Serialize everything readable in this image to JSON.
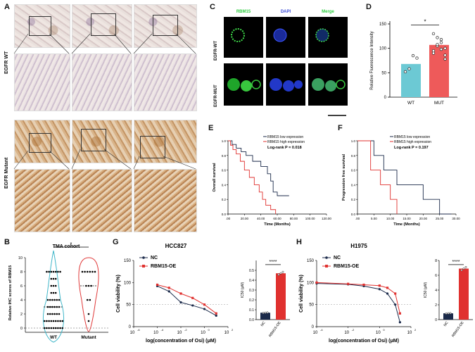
{
  "panels": {
    "A": "A",
    "B": "B",
    "C": "C",
    "D": "D",
    "E": "E",
    "F": "F",
    "G": "G",
    "H": "H"
  },
  "panelA": {
    "row_wt": "EGFR WT",
    "row_mut": "EGFR Mutant"
  },
  "panelB": {
    "title": "TMA cohort",
    "ylabel": "Relative IHC scores of RBM15",
    "categories": [
      "WT",
      "Mutant"
    ],
    "yticks": [
      "0",
      "2",
      "4",
      "6",
      "8",
      "10"
    ],
    "sig": "*",
    "colors": {
      "WT": "#3fb6c9",
      "Mutant": "#e03a3a"
    }
  },
  "panelC": {
    "cols": [
      "RBM15",
      "DAPI",
      "Merge"
    ],
    "rows": [
      "EGFR-WT",
      "EGFR-MUT"
    ],
    "col_colors": [
      "#2ecc40",
      "#3a4bd6",
      "#2ecc40"
    ]
  },
  "panelD": {
    "ylabel": "Relative Fluorescence Intensity",
    "categories": [
      "WT",
      "MUT"
    ],
    "yticks": [
      "0",
      "50",
      "100",
      "150"
    ],
    "sig": "*",
    "chart_data": {
      "type": "bar",
      "categories": [
        "WT",
        "MUT"
      ],
      "values": [
        68,
        107
      ],
      "ylim": [
        0,
        150
      ],
      "points": {
        "WT": [
          52,
          58,
          85,
          80
        ],
        "MUT": [
          130,
          122,
          112,
          100,
          95,
          105,
          118,
          86,
          90,
          108,
          98,
          78
        ]
      },
      "colors": [
        "#6cc9d4",
        "#ee5a5a"
      ]
    }
  },
  "panelE": {
    "ylabel": "Overall survival",
    "xlabel": "Time (Months)",
    "xticks": [
      ".00",
      "20.00",
      "40.00",
      "60.00",
      "80.00",
      "100.00",
      "120.00"
    ],
    "yticks": [
      "0.0",
      "0.2",
      "0.4",
      "0.6",
      "0.8",
      "1.0"
    ],
    "legend_low": "RBM15 low expression",
    "legend_high": "RBM15 high expression",
    "pvalue": "Log-rank P = 0.018"
  },
  "panelF": {
    "ylabel": "Progression free survival",
    "xlabel": "Time (Months)",
    "xticks": [
      ".00",
      "5.00",
      "10.00",
      "15.00",
      "20.00",
      "25.00",
      "30.00"
    ],
    "yticks": [
      "0.0",
      "0.2",
      "0.4",
      "0.6",
      "0.8",
      "1.0"
    ],
    "legend_low": "RBM15 low expression",
    "legend_high": "RBM15 high expression",
    "pvalue": "Log-rank P = 0.197"
  },
  "panelG": {
    "title": "HCC827",
    "ylabel": "Cell viability (%)",
    "xlabel": "log(concentration of Osi) (μM)",
    "yticks": [
      "0",
      "50",
      "100",
      "150"
    ],
    "xticks": [
      "10",
      "10",
      "10",
      "10",
      "10"
    ],
    "xexp": [
      "-6",
      "-4",
      "-2",
      "0",
      "2"
    ],
    "legend": [
      "NC",
      "RBM15-OE"
    ],
    "bar_ylabel": "IC50 (μM)",
    "bar_yticks": [
      "0.0",
      "0.1",
      "0.2",
      "0.3",
      "0.4",
      "0.5"
    ],
    "bar_categories": [
      "NC",
      "RBM15-OE"
    ],
    "sig": "****",
    "chart_data": {
      "type": "bar",
      "categories": [
        "NC",
        "RBM15-OE"
      ],
      "values": [
        0.07,
        0.47
      ],
      "ylim": [
        0,
        0.6
      ],
      "curve_x_log": [
        -4,
        -3,
        -2,
        -1,
        0,
        1
      ],
      "NC": [
        92,
        80,
        55,
        48,
        40,
        25
      ],
      "RBM15-OE": [
        95,
        88,
        75,
        65,
        50,
        30
      ]
    }
  },
  "panelH": {
    "title": "H1975",
    "ylabel": "Cell viability (%)",
    "xlabel": "log(concentration of Osi) (μM)",
    "yticks": [
      "0",
      "50",
      "100",
      "150"
    ],
    "xticks": [
      "10",
      "10",
      "10",
      "10"
    ],
    "xexp": [
      "-4",
      "-2",
      "0",
      "2"
    ],
    "legend": [
      "NC",
      "RBM15-OE"
    ],
    "bar_ylabel": "IC50 (μM)",
    "bar_yticks": [
      "0",
      "2",
      "4",
      "6",
      "8"
    ],
    "bar_categories": [
      "NC",
      "RBM15-OE"
    ],
    "sig": "****",
    "chart_data": {
      "type": "bar",
      "categories": [
        "NC",
        "RBM15-OE"
      ],
      "values": [
        0.85,
        6.9
      ],
      "ylim": [
        0,
        8
      ],
      "curve_x_log": [
        -4,
        -2,
        -1,
        0,
        0.5,
        1,
        1.3
      ],
      "NC": [
        98,
        96,
        92,
        85,
        75,
        50,
        10
      ],
      "RBM15-OE": [
        100,
        97,
        95,
        93,
        88,
        75,
        30
      ]
    }
  },
  "colors": {
    "navy": "#1b2a4a",
    "red": "#e0312f",
    "cyan": "#52c3cf"
  }
}
